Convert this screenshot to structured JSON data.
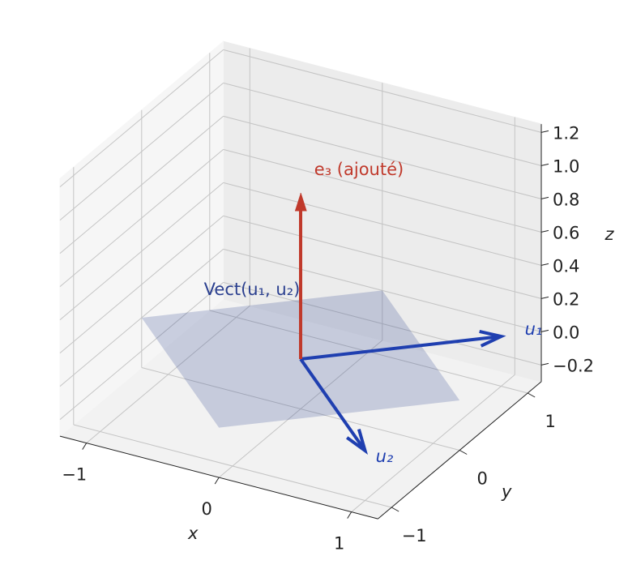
{
  "chart_data": {
    "type": "quiver3d",
    "xlabel": "x",
    "ylabel": "y",
    "zlabel": "z",
    "xlim": [
      -1.2,
      1.2
    ],
    "ylim": [
      -1.2,
      1.2
    ],
    "zlim": [
      -0.3,
      1.25
    ],
    "xticks": [
      {
        "value": -1,
        "label": "−1"
      },
      0,
      1
    ],
    "yticks": [
      {
        "value": -1,
        "label": "−1"
      },
      0,
      1
    ],
    "zticks": [
      {
        "value": -0.2,
        "label": "−0.2"
      },
      {
        "value": 0,
        "label": "0.0"
      },
      0.2,
      0.4,
      0.6,
      0.8,
      {
        "value": 1,
        "label": "1.0"
      },
      1.2
    ],
    "grid": true,
    "plane": {
      "name": "Vect(u₁, u₂)",
      "color": "#2a3f8f",
      "corners": [
        [
          -1.2,
          0,
          0
        ],
        [
          0,
          1.2,
          0
        ],
        [
          1.2,
          0,
          0
        ],
        [
          0,
          -1.2,
          0
        ]
      ]
    },
    "vectors": [
      {
        "name": "u₁",
        "color": "#1f3fb0",
        "end": [
          1,
          1,
          0
        ]
      },
      {
        "name": "u₂",
        "color": "#1f3fb0",
        "end": [
          1,
          -1,
          0
        ]
      },
      {
        "name": "e₃ (ajouté)",
        "color": "#c0392b",
        "end": [
          0,
          0,
          1
        ]
      }
    ]
  }
}
